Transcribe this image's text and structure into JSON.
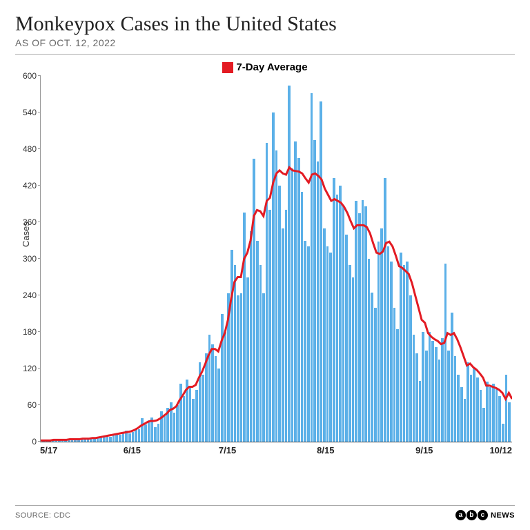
{
  "title": "Monkeypox Cases in the United States",
  "subtitle": "AS OF OCT. 12, 2022",
  "legend_label": "7-Day Average",
  "legend_color": "#e31b23",
  "yaxis_label": "Cases",
  "source": "SOURCE: CDC",
  "network": "NEWS",
  "chart": {
    "type": "bar_with_line",
    "bar_color": "#5bb0e8",
    "line_color": "#e31b23",
    "line_width": 3,
    "background_color": "#ffffff",
    "ylim": [
      0,
      600
    ],
    "ytick_step": 60,
    "yticks": [
      0,
      60,
      120,
      180,
      240,
      300,
      360,
      420,
      480,
      540,
      600
    ],
    "xticks": [
      {
        "label": "5/17",
        "pos": 0.0
      },
      {
        "label": "6/15",
        "pos": 0.195
      },
      {
        "label": "7/15",
        "pos": 0.397
      },
      {
        "label": "8/15",
        "pos": 0.605
      },
      {
        "label": "9/15",
        "pos": 0.814
      },
      {
        "label": "10/12",
        "pos": 1.0
      }
    ],
    "bars": [
      2,
      1,
      2,
      3,
      2,
      3,
      4,
      2,
      3,
      5,
      4,
      3,
      5,
      6,
      4,
      5,
      7,
      6,
      8,
      9,
      10,
      8,
      12,
      14,
      11,
      15,
      18,
      14,
      16,
      22,
      20,
      38,
      28,
      35,
      40,
      24,
      30,
      50,
      42,
      55,
      65,
      48,
      60,
      95,
      75,
      102,
      88,
      70,
      85,
      130,
      110,
      145,
      175,
      160,
      140,
      120,
      210,
      180,
      244,
      315,
      290,
      240,
      244,
      376,
      270,
      345,
      464,
      330,
      290,
      244,
      490,
      380,
      540,
      478,
      420,
      350,
      380,
      584,
      448,
      492,
      465,
      410,
      330,
      320,
      572,
      495,
      460,
      558,
      350,
      320,
      310,
      432,
      405,
      420,
      388,
      340,
      290,
      270,
      395,
      375,
      396,
      386,
      300,
      245,
      220,
      328,
      350,
      432,
      320,
      295,
      220,
      185,
      310,
      290,
      295,
      240,
      175,
      145,
      100,
      180,
      150,
      180,
      165,
      155,
      135,
      170,
      292,
      150,
      212,
      140,
      110,
      90,
      70,
      130,
      110,
      120,
      105,
      85,
      55,
      98,
      90,
      95,
      88,
      75,
      30,
      110,
      65
    ],
    "avg_line": [
      2,
      2,
      2,
      2,
      3,
      3,
      3,
      3,
      3,
      4,
      4,
      4,
      4,
      5,
      5,
      5,
      6,
      6,
      7,
      8,
      9,
      10,
      11,
      12,
      13,
      14,
      15,
      16,
      17,
      19,
      22,
      26,
      29,
      32,
      34,
      34,
      35,
      38,
      42,
      46,
      52,
      54,
      58,
      68,
      76,
      85,
      90,
      90,
      93,
      105,
      115,
      128,
      142,
      152,
      152,
      148,
      165,
      178,
      200,
      235,
      262,
      270,
      270,
      300,
      310,
      330,
      370,
      380,
      378,
      370,
      395,
      400,
      425,
      440,
      445,
      440,
      438,
      450,
      445,
      444,
      443,
      440,
      432,
      425,
      438,
      440,
      436,
      430,
      415,
      405,
      395,
      398,
      395,
      392,
      385,
      375,
      362,
      350,
      355,
      355,
      355,
      352,
      342,
      325,
      310,
      308,
      312,
      326,
      328,
      320,
      305,
      288,
      285,
      280,
      275,
      260,
      240,
      220,
      200,
      195,
      178,
      172,
      168,
      165,
      160,
      162,
      178,
      175,
      178,
      168,
      155,
      140,
      125,
      128,
      122,
      118,
      112,
      105,
      92,
      92,
      90,
      88,
      85,
      80,
      70,
      80,
      70
    ]
  }
}
